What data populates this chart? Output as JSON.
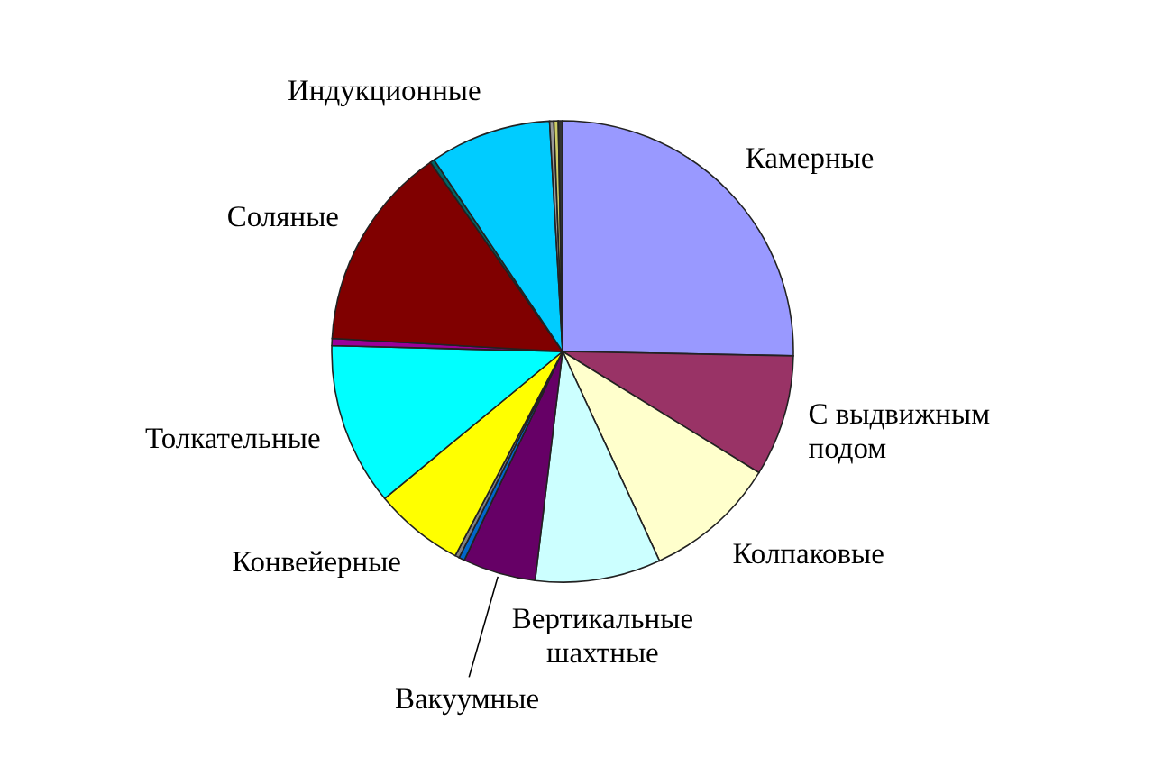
{
  "chart_data": {
    "type": "pie",
    "categories": [
      "Камерные",
      "С выдвижным подом",
      "Колпаковые",
      "Вертикальные шахтные",
      "Вакуумные",
      null,
      null,
      "Конвейерные",
      "Толкательные",
      null,
      "Соляные",
      null,
      "Индукционные",
      null,
      null,
      null
    ],
    "values": [
      25.3,
      8.5,
      9.3,
      8.8,
      5.1,
      0.4,
      0.3,
      6.3,
      11.4,
      0.5,
      14.4,
      0.3,
      8.5,
      0.3,
      0.3,
      0.3
    ],
    "colors": [
      "#9999ff",
      "#993366",
      "#ffffcc",
      "#ccffff",
      "#660066",
      "#0066cc",
      "#808080",
      "#ffff00",
      "#00ffff",
      "#990099",
      "#800000",
      "#006666",
      "#00ccff",
      "#999999",
      "#cccc66",
      "#333333"
    ]
  }
}
